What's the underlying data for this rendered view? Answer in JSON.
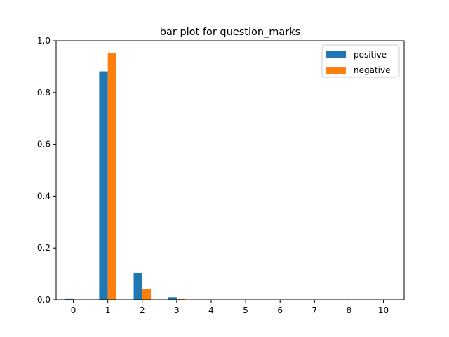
{
  "chart_data": {
    "type": "bar",
    "title": "bar plot for question_marks",
    "xlabel": "",
    "ylabel": "",
    "categories": [
      "0",
      "1",
      "2",
      "3",
      "4",
      "5",
      "6",
      "7",
      "8",
      "10"
    ],
    "ylim": [
      0,
      1.0
    ],
    "yticks": [
      "0.0",
      "0.2",
      "0.4",
      "0.6",
      "0.8",
      "1.0"
    ],
    "legend_position": "top-right",
    "grid": false,
    "series": [
      {
        "name": "positive",
        "color": "#1f77b4",
        "values": [
          0.003,
          0.882,
          0.103,
          0.01,
          0.0005,
          0.0002,
          0.0001,
          0.0001,
          0.0001,
          0.0001
        ]
      },
      {
        "name": "negative",
        "color": "#ff7f0e",
        "values": [
          0.0005,
          0.952,
          0.043,
          0.003,
          0.0002,
          0.0001,
          0.0001,
          0.0001,
          0.0001,
          0.0001
        ]
      }
    ]
  }
}
